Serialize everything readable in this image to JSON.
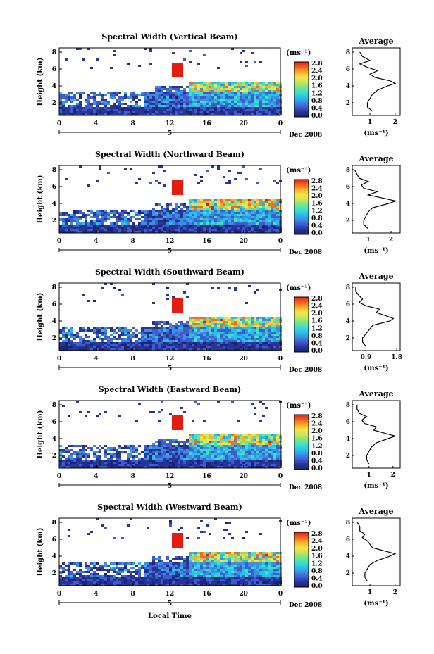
{
  "date_label": "Dec 2008",
  "x_label": "Local Time",
  "colorbar": {
    "unit": "(ms⁻¹)",
    "ticks": [
      "2.8",
      "2.4",
      "2.0",
      "1.6",
      "1.2",
      "0.8",
      "0.4",
      "0.0"
    ],
    "stops": [
      "#1a237e",
      "#283593",
      "#3f5bd0",
      "#3a8fe0",
      "#27c2e8",
      "#3fe0c8",
      "#7be38a",
      "#c6e85a",
      "#f2e64a",
      "#f9b12d",
      "#f46a1e",
      "#e41d12"
    ]
  },
  "panels": [
    {
      "title": "Spectral Width (Vertical Beam)",
      "prof_x_ticks": [
        "1",
        "2"
      ],
      "prof_x_range": [
        0.3,
        2.2
      ]
    },
    {
      "title": "Spectral Width (Northward Beam)",
      "prof_x_ticks": [
        "1",
        "2"
      ],
      "prof_x_range": [
        0.3,
        2.4
      ]
    },
    {
      "title": "Spectral Width (Southward Beam)",
      "prof_x_ticks": [
        "0.9",
        "1.8"
      ],
      "prof_x_range": [
        0.5,
        1.9
      ]
    },
    {
      "title": "Spectral Width (Eastward Beam)",
      "prof_x_ticks": [
        "1",
        "2"
      ],
      "prof_x_range": [
        0.3,
        2.3
      ]
    },
    {
      "title": "Spectral Width (Westward Beam)",
      "prof_x_ticks": [
        "1",
        "2"
      ],
      "prof_x_range": [
        0.3,
        2.2
      ]
    }
  ],
  "chart_data": {
    "type": "heatmap",
    "panels": 5,
    "x_ticks": [
      "0",
      "4",
      "8",
      "12",
      "16",
      "20",
      "0"
    ],
    "x_second_row": "5",
    "y_ticks": [
      "2",
      "4",
      "6",
      "8"
    ],
    "y_label": "Height (km)",
    "x_label": "Local Time",
    "date": "Dec 2008",
    "colorbar_range": [
      0.0,
      2.8
    ],
    "side_plot": {
      "title": "Average",
      "y_ticks": [
        "2",
        "4",
        "6",
        "8"
      ],
      "x_unit": "(ms⁻¹)",
      "heights_km": [
        1.0,
        1.5,
        2.0,
        2.5,
        3.0,
        3.5,
        4.0,
        4.3,
        4.6,
        5.0,
        5.4,
        5.8,
        6.2,
        6.6,
        7.0,
        7.5,
        8.0
      ],
      "profiles": [
        {
          "beam": "Vertical",
          "values": [
            1.1,
            0.9,
            0.9,
            1.0,
            1.1,
            1.3,
            1.7,
            2.0,
            1.8,
            1.2,
            1.0,
            1.3,
            0.9,
            0.6,
            1.0,
            0.7,
            0.6
          ]
        },
        {
          "beam": "Northward",
          "values": [
            1.0,
            0.8,
            0.8,
            0.9,
            1.0,
            1.2,
            1.9,
            2.2,
            1.7,
            1.0,
            1.4,
            0.8,
            0.7,
            1.0,
            0.6,
            0.5,
            0.4
          ]
        },
        {
          "beam": "Southward",
          "values": [
            0.9,
            0.8,
            0.8,
            0.9,
            1.0,
            1.1,
            1.6,
            1.7,
            1.5,
            1.2,
            1.3,
            0.9,
            0.7,
            0.8,
            0.7,
            0.6,
            0.6
          ]
        },
        {
          "beam": "Eastward",
          "values": [
            1.0,
            0.9,
            0.9,
            1.0,
            1.1,
            1.3,
            1.8,
            2.1,
            1.7,
            1.2,
            1.3,
            0.8,
            0.7,
            0.9,
            0.6,
            0.5,
            0.5
          ]
        },
        {
          "beam": "Westward",
          "values": [
            0.9,
            0.8,
            0.8,
            0.9,
            1.0,
            1.3,
            1.8,
            2.0,
            1.6,
            1.1,
            1.0,
            0.9,
            0.7,
            0.8,
            0.6,
            0.6,
            0.5
          ]
        }
      ]
    }
  }
}
